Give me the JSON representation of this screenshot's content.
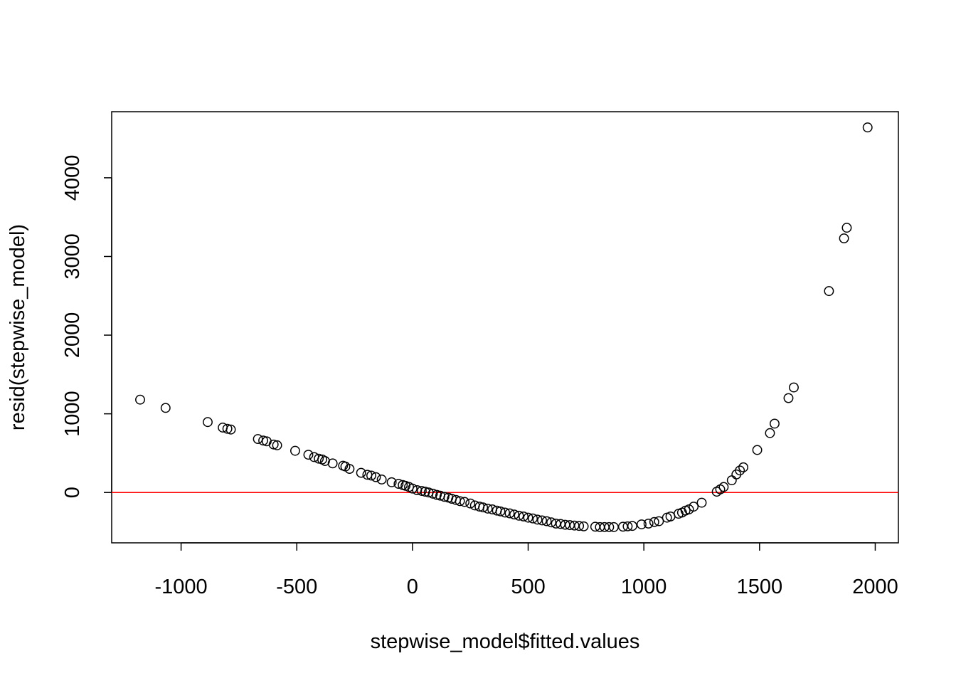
{
  "chart_data": {
    "type": "scatter",
    "xlabel": "stepwise_model$fitted.values",
    "ylabel": "resid(stepwise_model)",
    "xlim": [
      -1300,
      2100
    ],
    "ylim": [
      -640,
      4840
    ],
    "x_ticks": [
      -1000,
      -500,
      0,
      500,
      1000,
      1500,
      2000
    ],
    "x_tick_labels": [
      "-1000",
      "-500",
      "0",
      "500",
      "1000",
      "1500",
      "2000"
    ],
    "y_ticks": [
      0,
      1000,
      2000,
      3000,
      4000
    ],
    "y_tick_labels": [
      "0",
      "1000",
      "2000",
      "3000",
      "4000"
    ],
    "reference_line": {
      "y": 0,
      "color": "#ff0000"
    },
    "point_color": "#000000",
    "grid": false,
    "legend": "none",
    "points": [
      [
        -1177,
        1180
      ],
      [
        -1067,
        1075
      ],
      [
        -885,
        895
      ],
      [
        -820,
        825
      ],
      [
        -800,
        810
      ],
      [
        -785,
        800
      ],
      [
        -668,
        680
      ],
      [
        -645,
        660
      ],
      [
        -630,
        650
      ],
      [
        -600,
        610
      ],
      [
        -585,
        600
      ],
      [
        -507,
        530
      ],
      [
        -450,
        480
      ],
      [
        -425,
        450
      ],
      [
        -405,
        430
      ],
      [
        -390,
        420
      ],
      [
        -378,
        400
      ],
      [
        -345,
        370
      ],
      [
        -300,
        340
      ],
      [
        -290,
        330
      ],
      [
        -272,
        300
      ],
      [
        -222,
        250
      ],
      [
        -195,
        225
      ],
      [
        -178,
        215
      ],
      [
        -158,
        195
      ],
      [
        -133,
        165
      ],
      [
        -90,
        130
      ],
      [
        -60,
        110
      ],
      [
        -42,
        95
      ],
      [
        -30,
        85
      ],
      [
        -15,
        70
      ],
      [
        0,
        50
      ],
      [
        20,
        30
      ],
      [
        40,
        20
      ],
      [
        55,
        10
      ],
      [
        70,
        0
      ],
      [
        88,
        -15
      ],
      [
        105,
        -30
      ],
      [
        120,
        -40
      ],
      [
        138,
        -55
      ],
      [
        155,
        -65
      ],
      [
        170,
        -80
      ],
      [
        188,
        -95
      ],
      [
        205,
        -110
      ],
      [
        225,
        -120
      ],
      [
        250,
        -140
      ],
      [
        270,
        -165
      ],
      [
        290,
        -180
      ],
      [
        305,
        -190
      ],
      [
        325,
        -205
      ],
      [
        345,
        -215
      ],
      [
        365,
        -230
      ],
      [
        380,
        -240
      ],
      [
        400,
        -255
      ],
      [
        420,
        -265
      ],
      [
        440,
        -280
      ],
      [
        460,
        -295
      ],
      [
        480,
        -305
      ],
      [
        500,
        -320
      ],
      [
        520,
        -330
      ],
      [
        540,
        -345
      ],
      [
        560,
        -355
      ],
      [
        580,
        -365
      ],
      [
        600,
        -380
      ],
      [
        620,
        -395
      ],
      [
        640,
        -400
      ],
      [
        660,
        -410
      ],
      [
        680,
        -415
      ],
      [
        700,
        -420
      ],
      [
        720,
        -425
      ],
      [
        740,
        -430
      ],
      [
        790,
        -435
      ],
      [
        810,
        -440
      ],
      [
        830,
        -440
      ],
      [
        850,
        -440
      ],
      [
        870,
        -440
      ],
      [
        910,
        -435
      ],
      [
        930,
        -430
      ],
      [
        950,
        -425
      ],
      [
        990,
        -405
      ],
      [
        1020,
        -395
      ],
      [
        1045,
        -375
      ],
      [
        1065,
        -365
      ],
      [
        1100,
        -320
      ],
      [
        1115,
        -305
      ],
      [
        1150,
        -270
      ],
      [
        1165,
        -255
      ],
      [
        1180,
        -230
      ],
      [
        1195,
        -215
      ],
      [
        1215,
        -180
      ],
      [
        1250,
        -130
      ],
      [
        1315,
        10
      ],
      [
        1330,
        40
      ],
      [
        1345,
        70
      ],
      [
        1380,
        155
      ],
      [
        1400,
        230
      ],
      [
        1415,
        280
      ],
      [
        1430,
        320
      ],
      [
        1490,
        540
      ],
      [
        1545,
        755
      ],
      [
        1565,
        875
      ],
      [
        1625,
        1200
      ],
      [
        1648,
        1335
      ],
      [
        1800,
        2560
      ],
      [
        1865,
        3230
      ],
      [
        1877,
        3365
      ],
      [
        1967,
        4640
      ]
    ]
  }
}
